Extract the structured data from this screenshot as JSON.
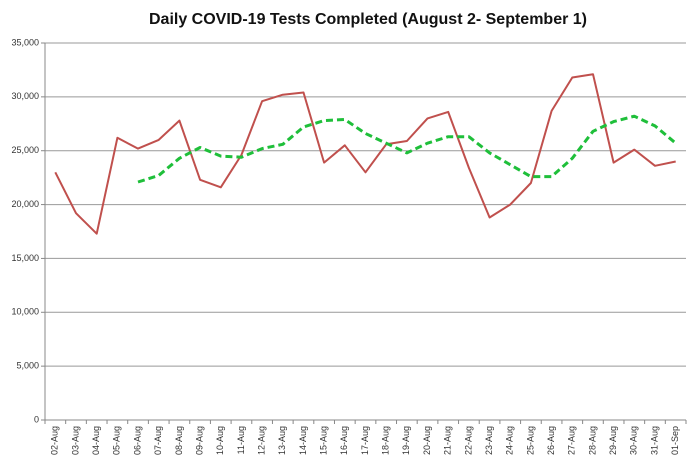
{
  "chart_data": {
    "type": "line",
    "title": "Daily COVID-19 Tests Completed (August 2- September 1)",
    "categories": [
      "02-Aug",
      "03-Aug",
      "04-Aug",
      "05-Aug",
      "06-Aug",
      "07-Aug",
      "08-Aug",
      "09-Aug",
      "10-Aug",
      "11-Aug",
      "12-Aug",
      "13-Aug",
      "14-Aug",
      "15-Aug",
      "16-Aug",
      "17-Aug",
      "18-Aug",
      "19-Aug",
      "20-Aug",
      "21-Aug",
      "22-Aug",
      "23-Aug",
      "24-Aug",
      "25-Aug",
      "26-Aug",
      "27-Aug",
      "28-Aug",
      "29-Aug",
      "30-Aug",
      "31-Aug",
      "01-Sep"
    ],
    "series": [
      {
        "color": "#c0504d",
        "dash": false,
        "values": [
          23000,
          19200,
          17300,
          26200,
          25200,
          26000,
          27800,
          22300,
          21600,
          24600,
          29600,
          30200,
          30400,
          23900,
          25500,
          23000,
          25600,
          25900,
          28000,
          28600,
          23400,
          18800,
          20000,
          22000,
          28700,
          31800,
          32100,
          23900,
          25100,
          23600,
          24000
        ]
      },
      {
        "color": "#1fbf3a",
        "dash": true,
        "values": [
          null,
          null,
          null,
          null,
          22100,
          22700,
          24300,
          25300,
          24500,
          24400,
          25200,
          25600,
          27200,
          27800,
          27900,
          26600,
          25700,
          24800,
          25700,
          26300,
          26300,
          24800,
          23700,
          22600,
          22600,
          24300,
          26800,
          27700,
          28200,
          27300,
          25700
        ]
      }
    ],
    "ylim": [
      0,
      35000
    ],
    "yticks": [
      0,
      {
        "value": 5000,
        "label": "5,000"
      },
      {
        "value": 10000,
        "label": "10,000"
      },
      {
        "value": 15000,
        "label": "15,000"
      },
      {
        "value": 20000,
        "label": "20,000"
      },
      {
        "value": 25000,
        "label": "25,000"
      },
      {
        "value": 30000,
        "label": "30,000"
      },
      {
        "value": 35000,
        "label": "35,000"
      }
    ],
    "grid": true
  }
}
